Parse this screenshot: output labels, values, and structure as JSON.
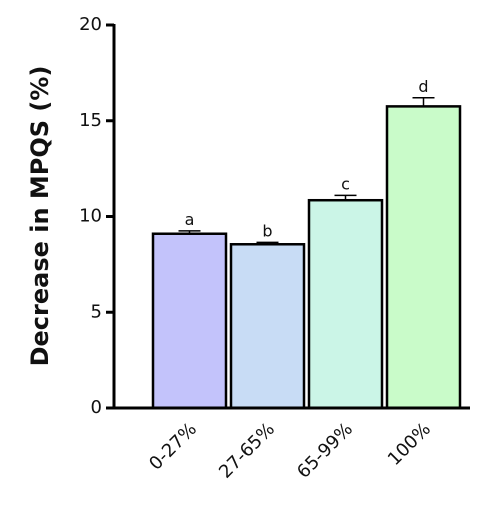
{
  "chart_data": {
    "type": "bar",
    "y_label": "Decrease in MPQS (%)",
    "categories": [
      "0-27%",
      "27-65%",
      "65-99%",
      "100%"
    ],
    "values": [
      9.1,
      8.55,
      10.85,
      15.75
    ],
    "errors": [
      0.15,
      0.1,
      0.25,
      0.45
    ],
    "annotations": [
      "a",
      "b",
      "c",
      "d"
    ],
    "colors": [
      "#c3c3fb",
      "#c8dcf5",
      "#cbf5e7",
      "#c9fbc9"
    ],
    "ylim": [
      0,
      20
    ],
    "yticks": [
      0,
      5,
      10,
      15,
      20
    ],
    "grid": false
  }
}
